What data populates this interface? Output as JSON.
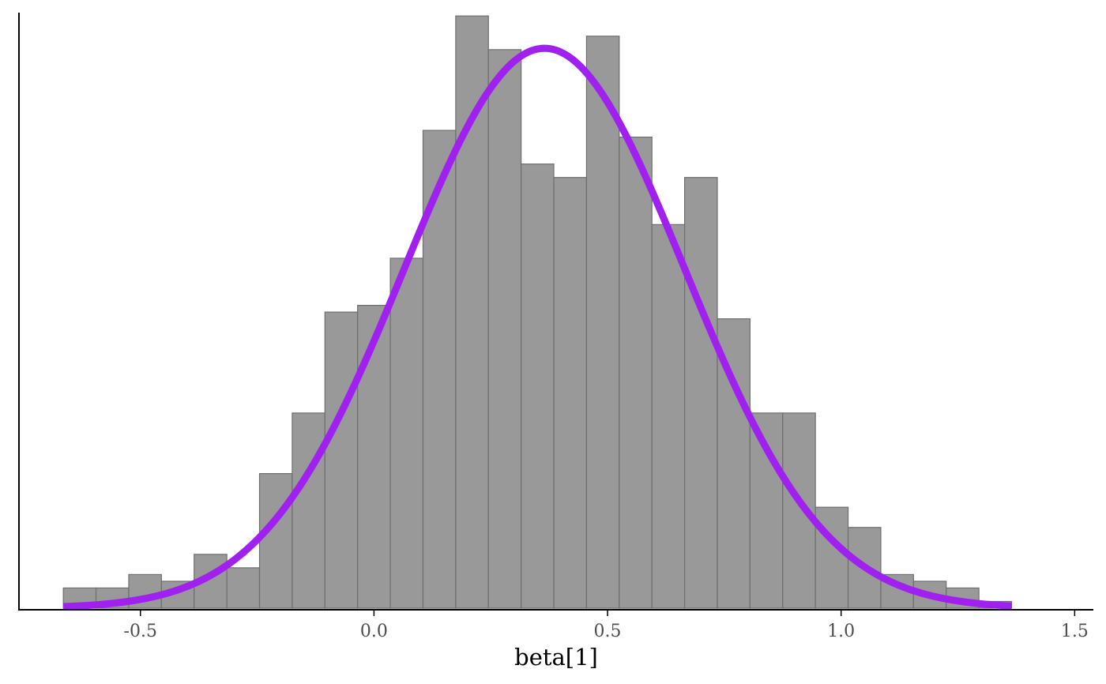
{
  "chart_data": {
    "type": "bar",
    "subtype": "histogram-with-density",
    "xlabel": "beta[1]",
    "ylabel": "",
    "xlim": [
      -0.76,
      1.54
    ],
    "ylim": [
      0,
      44.6
    ],
    "x_ticks": [
      -0.5,
      0.0,
      0.5,
      1.0,
      1.5
    ],
    "x_tick_labels": [
      "-0.5",
      "0.0",
      "0.5",
      "1.0",
      "1.5"
    ],
    "y_axis_ticks_shown": false,
    "grid": false,
    "bins": {
      "start": -0.665,
      "width": 0.07,
      "counts": [
        1.5,
        1.5,
        2.5,
        2,
        4,
        3,
        10,
        14.5,
        22,
        22.5,
        26,
        35.5,
        44,
        41.5,
        33,
        32,
        42.5,
        35,
        28.5,
        32,
        21.5,
        14.5,
        14.5,
        7.5,
        6,
        2.5,
        2,
        1.5,
        0.5
      ]
    },
    "density_curve": {
      "color": "#a020f0",
      "mean": 0.365,
      "sd": 0.3,
      "peak": 41.6,
      "x_range": [
        -0.665,
        1.365
      ]
    },
    "bar_color": "#999999"
  }
}
